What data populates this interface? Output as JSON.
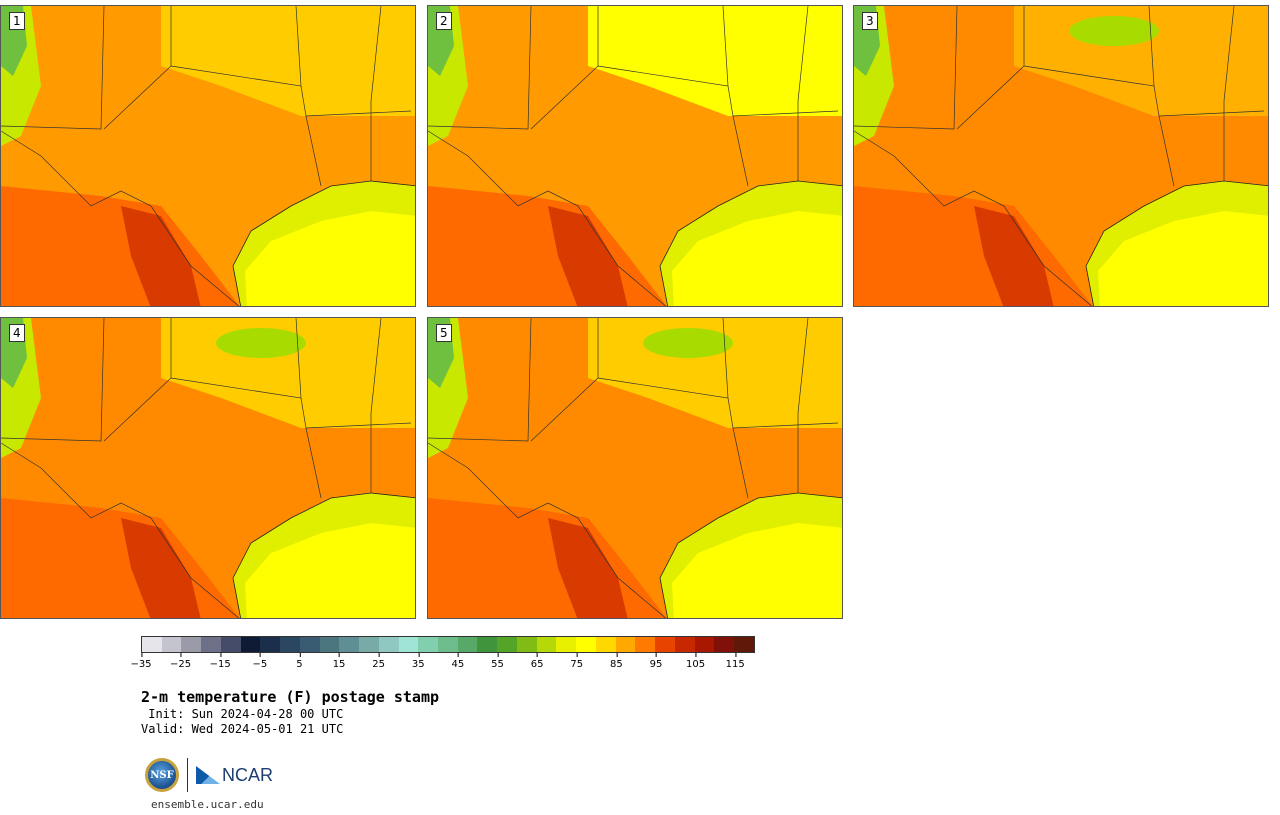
{
  "panels": [
    {
      "label": "1"
    },
    {
      "label": "2"
    },
    {
      "label": "3"
    },
    {
      "label": "4"
    },
    {
      "label": "5"
    }
  ],
  "title": "2-m temperature (F) postage stamp",
  "init": " Init: Sun 2024-04-28 00 UTC",
  "valid": "Valid: Wed 2024-05-01 21 UTC",
  "url": "ensemble.ucar.edu",
  "logos": {
    "nsf": "NSF",
    "ncar": "NCAR"
  },
  "colorbar": {
    "colors": [
      "#e6e6ea",
      "#c4c4ce",
      "#9a9aa8",
      "#6e7088",
      "#454c6a",
      "#0f1a35",
      "#1c2f4a",
      "#2a4660",
      "#3a5c72",
      "#4b7680",
      "#5f8e94",
      "#78aaa8",
      "#8ec8c0",
      "#9fe4d4",
      "#80d0b0",
      "#6cbc8c",
      "#58a868",
      "#40943c",
      "#54a428",
      "#80bc14",
      "#b4d808",
      "#e8f000",
      "#ffff00",
      "#ffd800",
      "#ffa800",
      "#ff7a00",
      "#e84400",
      "#c82800",
      "#a81800",
      "#801008",
      "#601808"
    ],
    "ticks": [
      "−35",
      "−25",
      "−15",
      "−5",
      "5",
      "15",
      "25",
      "35",
      "45",
      "55",
      "65",
      "75",
      "85",
      "95",
      "105",
      "115"
    ]
  }
}
